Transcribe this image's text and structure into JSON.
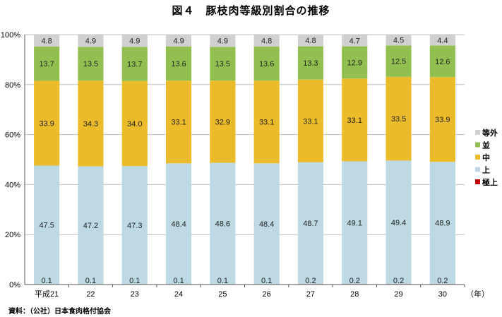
{
  "chart_data": {
    "type": "bar",
    "stacked": true,
    "title": "図４　豚枝肉等級別割合の推移",
    "source": "資料：（公社）日本食肉格付協会",
    "x_unit": "（年）",
    "categories": [
      "平成21",
      "22",
      "23",
      "24",
      "25",
      "26",
      "27",
      "28",
      "29",
      "30"
    ],
    "ylim": [
      0,
      100
    ],
    "y_ticks": [
      "0%",
      "20%",
      "40%",
      "60%",
      "80%",
      "100%"
    ],
    "grid": true,
    "legend_position": "right",
    "series": [
      {
        "name": "極上",
        "color": "#c00000",
        "values": [
          0.1,
          0.1,
          0.1,
          0.1,
          0.1,
          0.1,
          0.2,
          0.2,
          0.2,
          0.2
        ]
      },
      {
        "name": "上",
        "color": "#bcd9e4",
        "values": [
          47.5,
          47.2,
          47.3,
          48.4,
          48.6,
          48.4,
          48.7,
          49.1,
          49.4,
          48.9
        ]
      },
      {
        "name": "中",
        "color": "#ecbb2a",
        "values": [
          33.9,
          34.3,
          34.0,
          33.1,
          32.9,
          33.1,
          33.1,
          33.1,
          33.5,
          33.9
        ]
      },
      {
        "name": "並",
        "color": "#92c050",
        "values": [
          13.7,
          13.5,
          13.7,
          13.6,
          13.5,
          13.6,
          13.3,
          12.9,
          12.5,
          12.6
        ]
      },
      {
        "name": "等外",
        "color": "#d0d0d0",
        "values": [
          4.8,
          4.9,
          4.9,
          4.9,
          4.9,
          4.8,
          4.8,
          4.7,
          4.5,
          4.4
        ]
      }
    ]
  }
}
